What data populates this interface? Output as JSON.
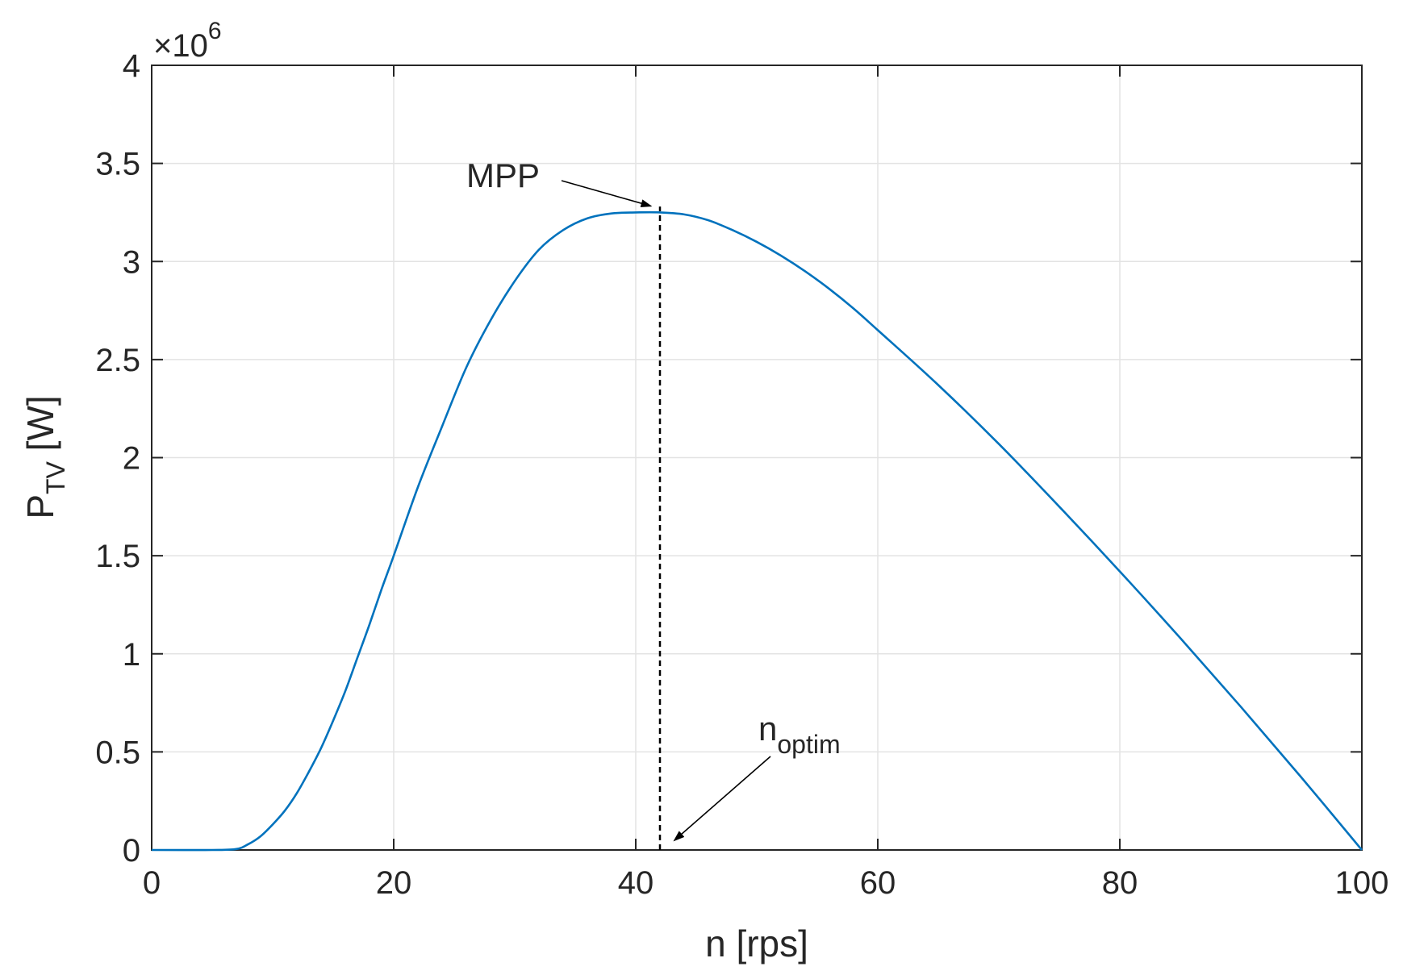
{
  "chart_data": {
    "type": "line",
    "xlabel": "n [rps]",
    "ylabel": {
      "main": "P",
      "sub": "TV",
      "suffix": " [W]"
    },
    "xlim": [
      0,
      100
    ],
    "ylim": [
      0,
      4000000
    ],
    "xticks": [
      0,
      20,
      40,
      60,
      80,
      100
    ],
    "yticks": [
      0,
      500000,
      1000000,
      1500000,
      2000000,
      2500000,
      3000000,
      3500000,
      4000000
    ],
    "xtick_labels": [
      "0",
      "20",
      "40",
      "60",
      "80",
      "100"
    ],
    "ytick_labels": [
      "0",
      "0.5",
      "1",
      "1.5",
      "2",
      "2.5",
      "3",
      "3.5",
      "4"
    ],
    "y_exponent": {
      "base": "×10",
      "power": "6"
    },
    "grid": true,
    "series": [
      {
        "color": "#0072BD",
        "x": [
          0,
          5,
          7,
          8,
          9,
          10,
          11,
          12,
          13,
          14,
          15,
          16,
          17,
          18,
          19,
          20,
          22,
          24,
          26,
          28,
          30,
          32,
          34,
          36,
          38,
          40,
          42,
          44,
          46,
          48,
          50,
          52,
          54,
          56,
          58,
          60,
          65,
          70,
          75,
          80,
          85,
          90,
          95,
          100
        ],
        "y": [
          0,
          0,
          5000,
          30000,
          70000,
          130000,
          200000,
          290000,
          400000,
          520000,
          660000,
          810000,
          980000,
          1150000,
          1330000,
          1500000,
          1850000,
          2160000,
          2460000,
          2700000,
          2900000,
          3060000,
          3160000,
          3220000,
          3245000,
          3250000,
          3250000,
          3240000,
          3210000,
          3160000,
          3100000,
          3030000,
          2950000,
          2860000,
          2760000,
          2650000,
          2370000,
          2070000,
          1750000,
          1420000,
          1080000,
          730000,
          370000,
          0
        ]
      }
    ],
    "annotations": [
      {
        "text": "MPP",
        "target": [
          41.5,
          3250000
        ]
      },
      {
        "text_main": "n",
        "text_sub": "optim",
        "target": [
          42,
          0
        ]
      }
    ],
    "reference_line": {
      "x": 42,
      "y_from": 0,
      "y_to": 3280000,
      "style": "dashed"
    }
  }
}
